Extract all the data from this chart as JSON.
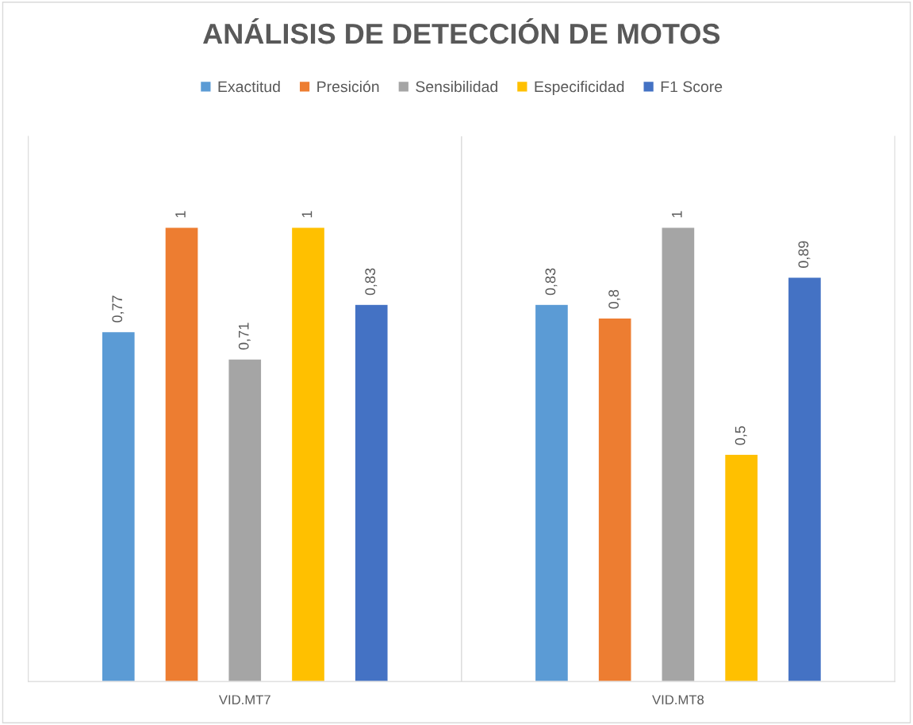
{
  "chart_data": {
    "type": "bar",
    "title": "ANÁLISIS DE DETECCIÓN DE MOTOS",
    "categories": [
      "VID.MT7",
      "VID.MT8"
    ],
    "series": [
      {
        "name": "Exactitud",
        "color": "#5b9bd5",
        "values": [
          0.77,
          0.83
        ],
        "value_labels": [
          "0,77",
          "0,83"
        ]
      },
      {
        "name": "Presición",
        "color": "#ed7d31",
        "values": [
          1,
          0.8
        ],
        "value_labels": [
          "1",
          "0,8"
        ]
      },
      {
        "name": "Sensibilidad",
        "color": "#a5a5a5",
        "values": [
          0.71,
          1
        ],
        "value_labels": [
          "0,71",
          "1"
        ]
      },
      {
        "name": "Especificidad",
        "color": "#ffc000",
        "values": [
          1,
          0.5
        ],
        "value_labels": [
          "1",
          "0,5"
        ]
      },
      {
        "name": "F1 Score",
        "color": "#4472c4",
        "values": [
          0.83,
          0.89
        ],
        "value_labels": [
          "0,83",
          "0,89"
        ]
      }
    ],
    "ylim": [
      0,
      1.2
    ],
    "tick_labels": "x",
    "grid": "x",
    "legend": "top"
  }
}
